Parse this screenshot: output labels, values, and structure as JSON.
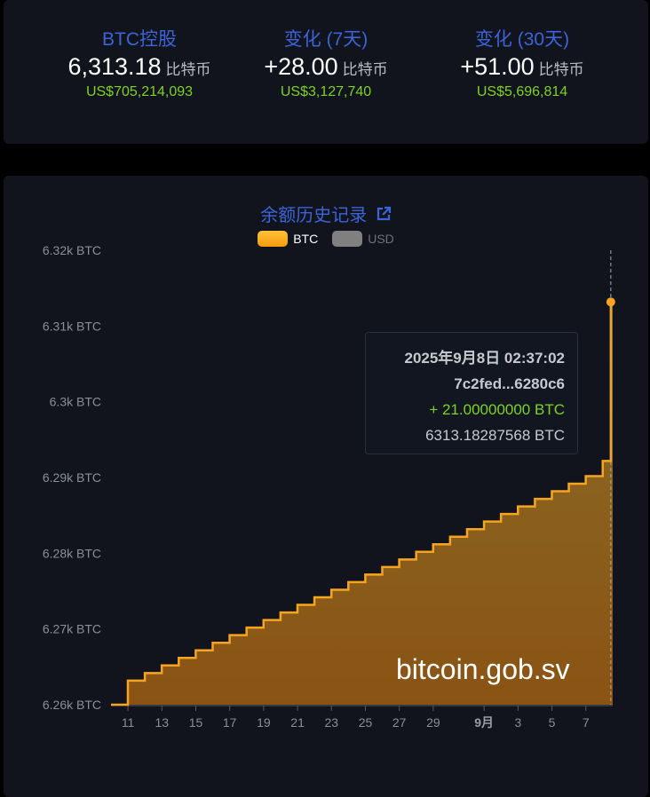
{
  "stats": [
    {
      "label": "BTC控股",
      "value": "6,313.18",
      "unit": "比特币",
      "usd": "US$705,214,093"
    },
    {
      "label": "变化 (7天)",
      "value": "+28.00",
      "unit": "比特币",
      "usd": "US$3,127,740"
    },
    {
      "label": "变化 (30天)",
      "value": "+51.00",
      "unit": "比特币",
      "usd": "US$5,696,814"
    }
  ],
  "colors": {
    "accent": "#3b64d8",
    "positive": "#7ed321",
    "btc_line": "#f7a520",
    "usd_legend": "#808080"
  },
  "tooltip": {
    "datetime": "2025年9月8日 02:37:02",
    "tx": "7c2fed...6280c6",
    "change": "+ 21.00000000 BTC",
    "balance": "6313.18287568 BTC"
  },
  "watermark": "bitcoin.gob.sv",
  "external_link_icon": "external-link-icon",
  "chart_data": {
    "type": "area",
    "step": true,
    "title": "余额历史记录",
    "legend": [
      {
        "name": "BTC",
        "active": true,
        "color": "#f7a520"
      },
      {
        "name": "USD",
        "active": false,
        "color": "#808080"
      }
    ],
    "legend_position": "top",
    "ylim": [
      6260,
      6320
    ],
    "y_ticks": [
      6260,
      6270,
      6280,
      6290,
      6300,
      6310,
      6320
    ],
    "y_tick_labels": [
      "6.26k BTC",
      "6.27k BTC",
      "6.28k BTC",
      "6.29k BTC",
      "6.3k BTC",
      "6.31k BTC",
      "6.32k BTC"
    ],
    "x_tick_labels": [
      "11",
      "13",
      "15",
      "17",
      "19",
      "21",
      "23",
      "25",
      "27",
      "29",
      "9月",
      "3",
      "5",
      "7"
    ],
    "x_tick_dates": [
      "2025-08-11",
      "2025-08-13",
      "2025-08-15",
      "2025-08-17",
      "2025-08-19",
      "2025-08-21",
      "2025-08-23",
      "2025-08-25",
      "2025-08-27",
      "2025-08-29",
      "2025-09-01",
      "2025-09-03",
      "2025-09-05",
      "2025-09-07"
    ],
    "xlim": [
      "2025-08-10",
      "2025-09-08T14:00"
    ],
    "x": [
      "2025-08-10",
      "2025-08-11",
      "2025-08-12",
      "2025-08-13",
      "2025-08-14",
      "2025-08-15",
      "2025-08-16",
      "2025-08-17",
      "2025-08-18",
      "2025-08-19",
      "2025-08-20",
      "2025-08-21",
      "2025-08-22",
      "2025-08-23",
      "2025-08-24",
      "2025-08-25",
      "2025-08-26",
      "2025-08-27",
      "2025-08-28",
      "2025-08-29",
      "2025-08-30",
      "2025-08-31",
      "2025-09-01",
      "2025-09-02",
      "2025-09-03",
      "2025-09-04",
      "2025-09-05",
      "2025-09-06",
      "2025-09-07",
      "2025-09-08"
    ],
    "y": [
      6263.18,
      6264.18,
      6265.18,
      6266.18,
      6267.18,
      6268.18,
      6269.18,
      6270.18,
      6271.18,
      6272.18,
      6273.18,
      6274.18,
      6275.18,
      6276.18,
      6277.18,
      6278.18,
      6279.18,
      6280.18,
      6281.18,
      6282.18,
      6283.18,
      6284.18,
      6285.18,
      6286.18,
      6287.18,
      6288.18,
      6289.18,
      6290.18,
      6292.18,
      6313.18
    ],
    "start_value": 6260,
    "highlight": {
      "x": "2025-09-08",
      "y": 6313.18
    },
    "grid": false
  }
}
